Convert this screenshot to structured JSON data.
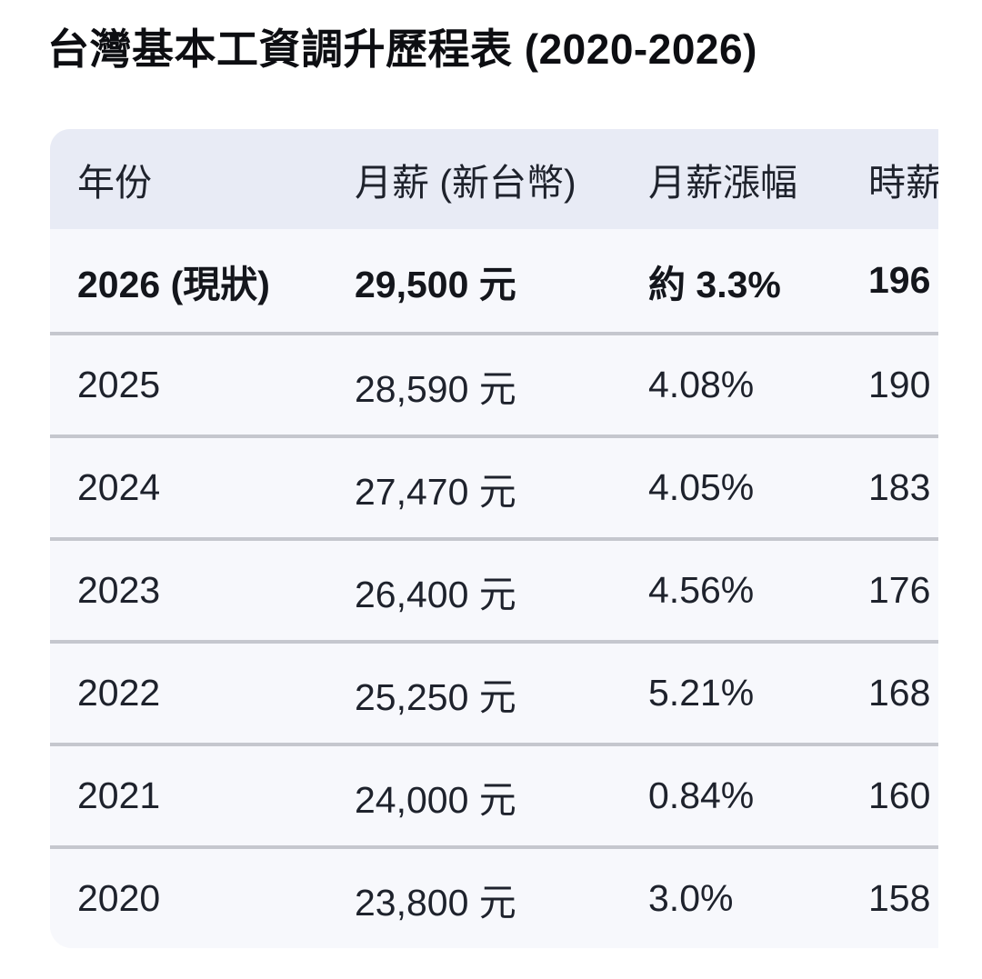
{
  "title": "台灣基本工資調升歷程表 (2020-2026)",
  "table": {
    "columns": [
      {
        "id": "year",
        "label": "年份"
      },
      {
        "id": "monthly",
        "label": "月薪 (新台幣)"
      },
      {
        "id": "growth",
        "label": "月薪漲幅"
      },
      {
        "id": "hourly",
        "label": "時薪"
      }
    ],
    "rows": [
      {
        "year": "2026 (現狀)",
        "monthly": "29,500 元",
        "growth": "約 3.3%",
        "hourly": "196",
        "highlight": true
      },
      {
        "year": "2025",
        "monthly": "28,590 元",
        "growth": "4.08%",
        "hourly": "190",
        "highlight": false
      },
      {
        "year": "2024",
        "monthly": "27,470 元",
        "growth": "4.05%",
        "hourly": "183",
        "highlight": false
      },
      {
        "year": "2023",
        "monthly": "26,400 元",
        "growth": "4.56%",
        "hourly": "176",
        "highlight": false
      },
      {
        "year": "2022",
        "monthly": "25,250 元",
        "growth": "5.21%",
        "hourly": "168",
        "highlight": false
      },
      {
        "year": "2021",
        "monthly": "24,000 元",
        "growth": "0.84%",
        "hourly": "160",
        "highlight": false
      },
      {
        "year": "2020",
        "monthly": "23,800 元",
        "growth": "3.0%",
        "hourly": "158",
        "highlight": false
      }
    ]
  },
  "colors": {
    "header_bg": "#E8EBF5",
    "row_bg": "#F7F8FC",
    "divider": "#C5C7CE",
    "text": "#1E222C",
    "title_text": "#0D0E12"
  }
}
